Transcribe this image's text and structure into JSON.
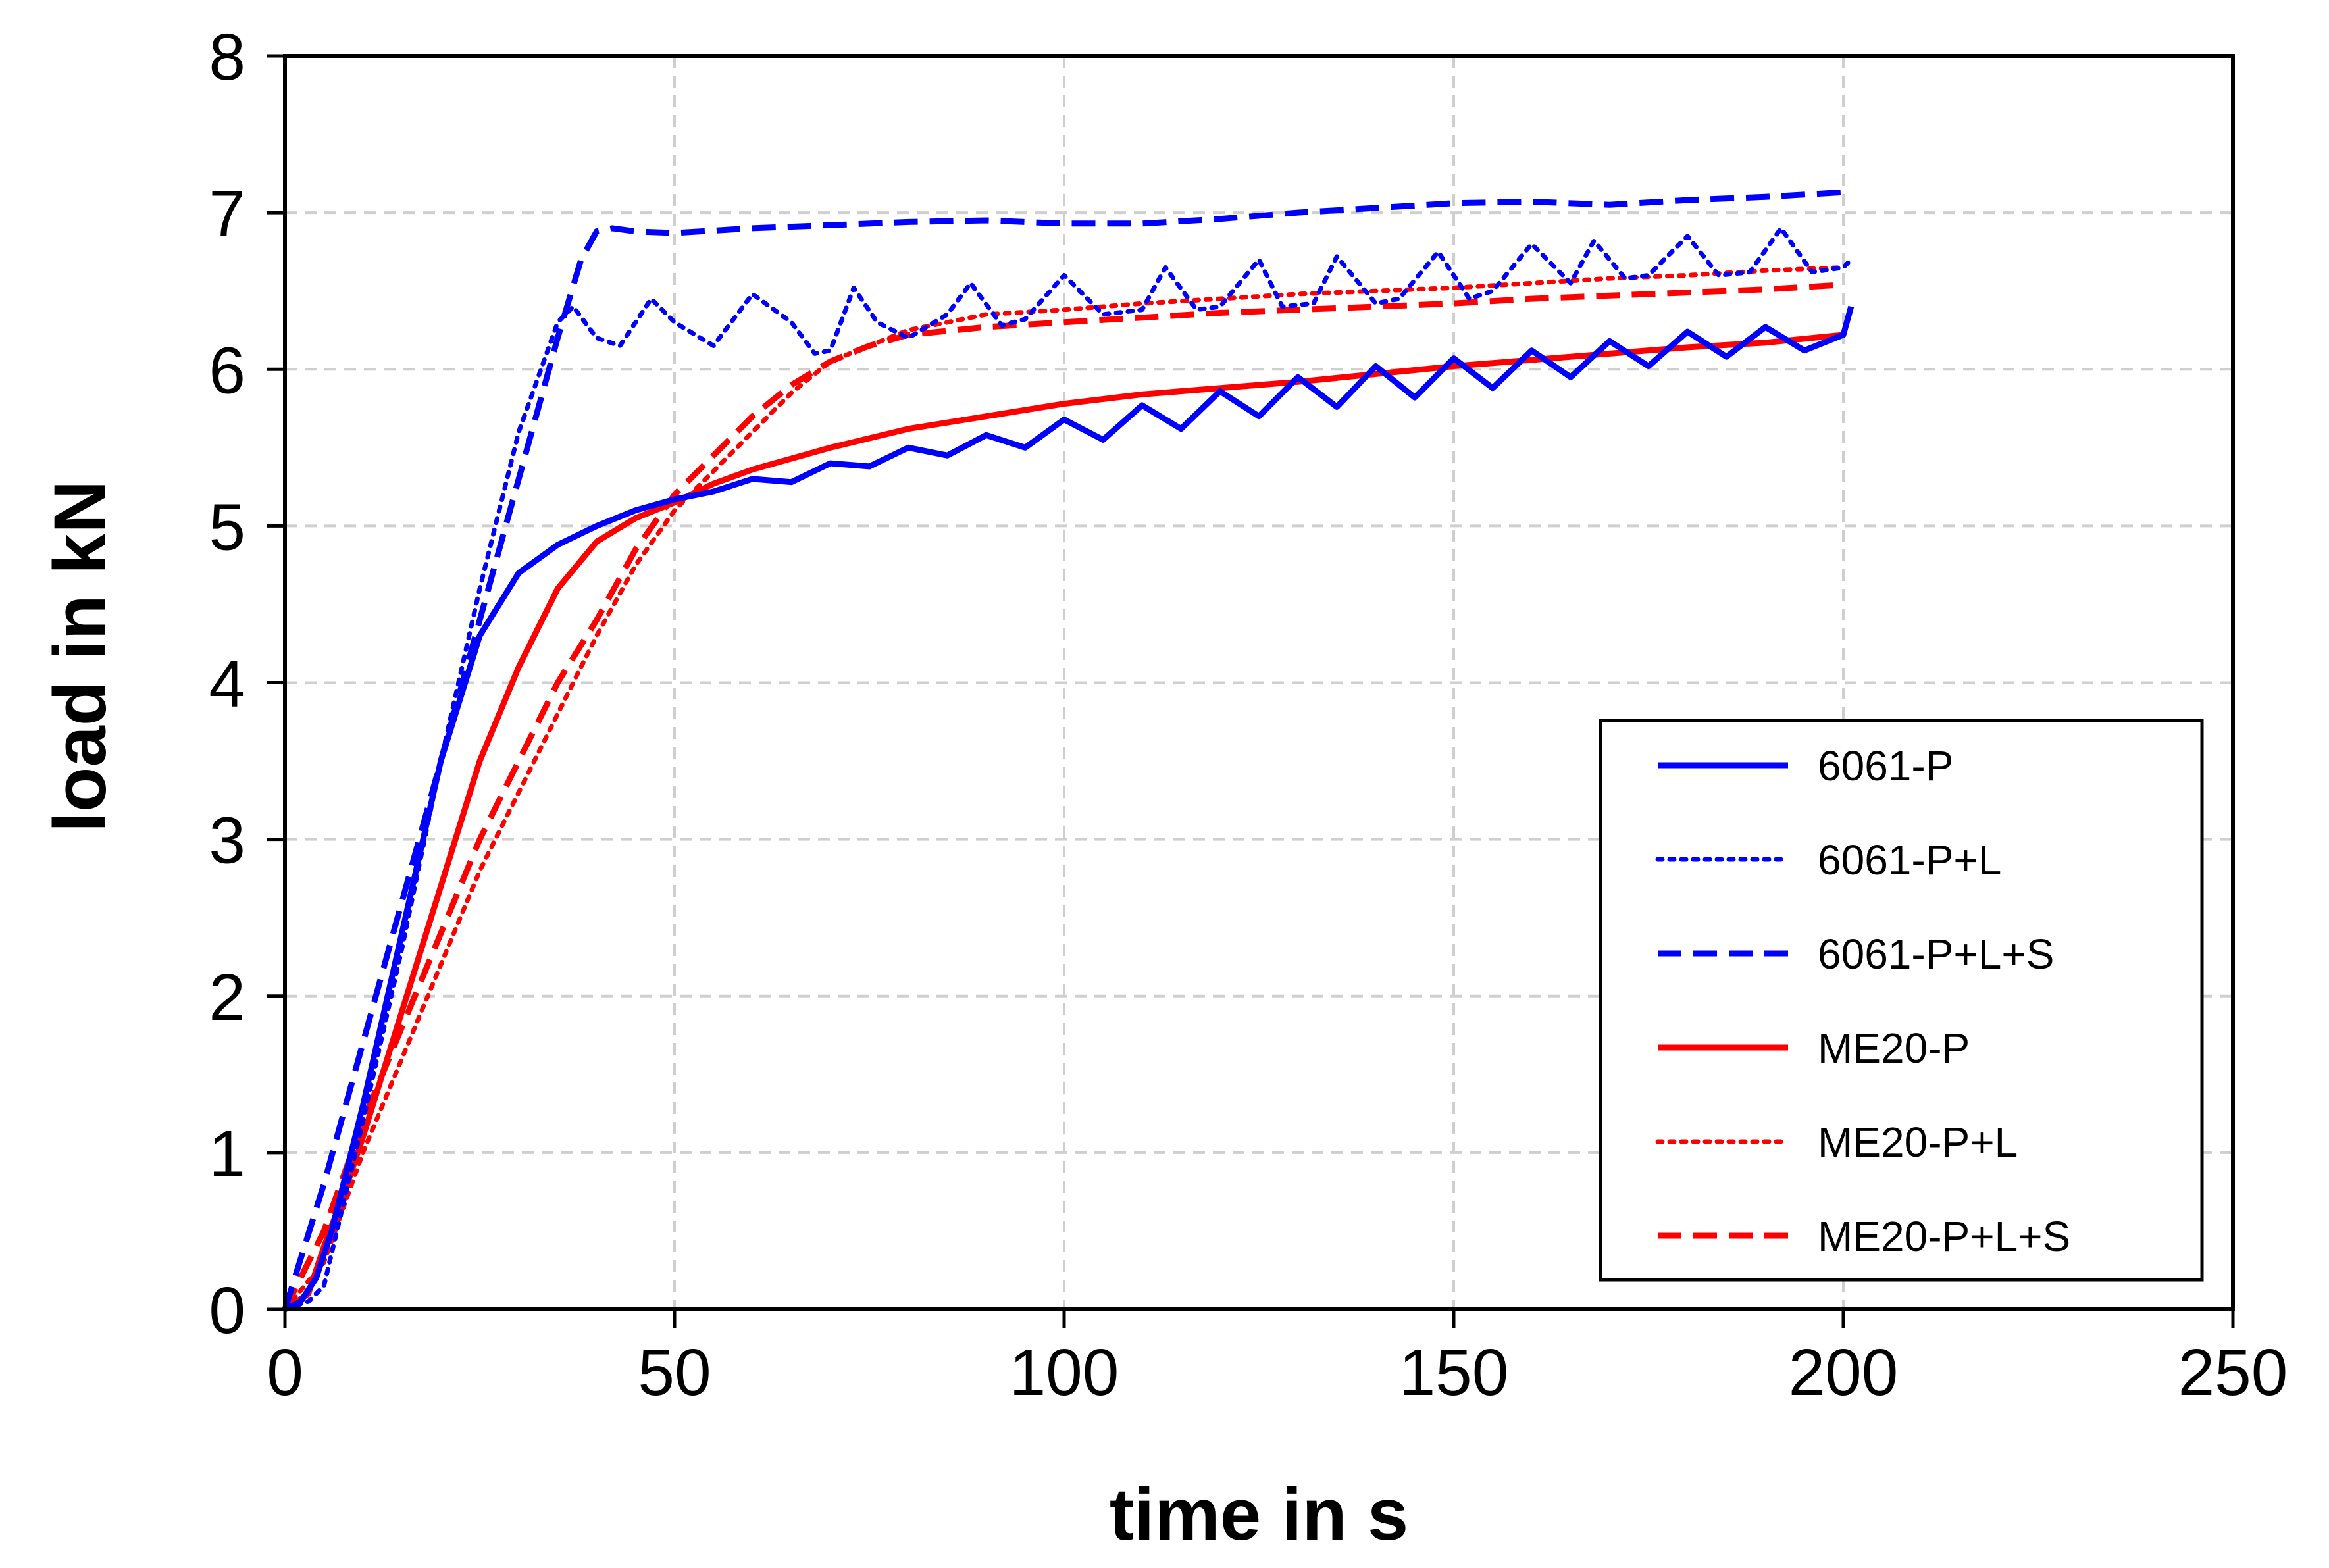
{
  "chart_data": {
    "type": "line",
    "title": "",
    "xlabel": "time in s",
    "ylabel": "load in kN",
    "xlim": [
      0,
      250
    ],
    "ylim": [
      0,
      8
    ],
    "xticks": [
      0,
      50,
      100,
      150,
      200,
      250
    ],
    "yticks": [
      0,
      1,
      2,
      3,
      4,
      5,
      6,
      7,
      8
    ],
    "xtick_labels": [
      "0",
      "50",
      "100",
      "150",
      "200",
      "250"
    ],
    "ytick_labels": [
      "0",
      "1",
      "2",
      "3",
      "4",
      "5",
      "6",
      "7",
      "8"
    ],
    "grid": true,
    "legend_position": "lower-right",
    "series": [
      {
        "name": "6061-P",
        "color": "#0000ff",
        "style": "solid",
        "x": [
          0,
          2,
          4,
          6,
          10,
          15,
          20,
          25,
          30,
          35,
          40,
          45,
          50,
          55,
          60,
          65,
          70,
          75,
          80,
          85,
          90,
          95,
          100,
          105,
          110,
          115,
          120,
          125,
          130,
          135,
          140,
          145,
          150,
          155,
          160,
          165,
          170,
          175,
          180,
          185,
          190,
          195,
          200,
          201
        ],
        "y": [
          0,
          0.05,
          0.2,
          0.5,
          1.3,
          2.4,
          3.5,
          4.3,
          4.7,
          4.88,
          5.0,
          5.1,
          5.17,
          5.22,
          5.3,
          5.28,
          5.4,
          5.38,
          5.5,
          5.45,
          5.58,
          5.5,
          5.68,
          5.55,
          5.77,
          5.62,
          5.86,
          5.7,
          5.95,
          5.76,
          6.02,
          5.82,
          6.07,
          5.88,
          6.12,
          5.95,
          6.18,
          6.02,
          6.24,
          6.08,
          6.27,
          6.12,
          6.22,
          6.4
        ]
      },
      {
        "name": "6061-P+L",
        "color": "#0000ff",
        "style": "dotted",
        "x": [
          0,
          3,
          5,
          10,
          15,
          20,
          25,
          30,
          35,
          37,
          40,
          43,
          47,
          50,
          55,
          60,
          65,
          68,
          70,
          73,
          76,
          80,
          85,
          88,
          92,
          95,
          100,
          105,
          110,
          113,
          117,
          120,
          125,
          128,
          132,
          135,
          140,
          143,
          148,
          152,
          155,
          160,
          165,
          168,
          172,
          175,
          180,
          184,
          188,
          192,
          196,
          200,
          201
        ],
        "y": [
          0,
          0.05,
          0.15,
          1.2,
          2.3,
          3.5,
          4.6,
          5.6,
          6.3,
          6.4,
          6.2,
          6.15,
          6.45,
          6.3,
          6.15,
          6.48,
          6.3,
          6.1,
          6.12,
          6.52,
          6.3,
          6.2,
          6.35,
          6.55,
          6.28,
          6.32,
          6.6,
          6.35,
          6.38,
          6.65,
          6.38,
          6.4,
          6.7,
          6.4,
          6.42,
          6.72,
          6.42,
          6.45,
          6.75,
          6.45,
          6.5,
          6.8,
          6.55,
          6.82,
          6.58,
          6.6,
          6.85,
          6.6,
          6.62,
          6.9,
          6.62,
          6.65,
          6.7
        ]
      },
      {
        "name": "6061-P+L+S",
        "color": "#0000ff",
        "style": "dashed",
        "x": [
          0,
          5,
          10,
          15,
          20,
          25,
          30,
          35,
          38,
          40,
          42,
          45,
          50,
          60,
          70,
          80,
          90,
          100,
          110,
          120,
          130,
          140,
          150,
          160,
          170,
          180,
          190,
          200
        ],
        "y": [
          0,
          0.8,
          1.7,
          2.6,
          3.5,
          4.4,
          5.3,
          6.2,
          6.7,
          6.88,
          6.9,
          6.88,
          6.87,
          6.9,
          6.92,
          6.94,
          6.95,
          6.93,
          6.93,
          6.96,
          7.0,
          7.03,
          7.06,
          7.07,
          7.05,
          7.08,
          7.1,
          7.13
        ]
      },
      {
        "name": "ME20-P",
        "color": "#ff0000",
        "style": "solid",
        "x": [
          0,
          3,
          5,
          8,
          10,
          15,
          20,
          25,
          30,
          35,
          40,
          45,
          50,
          55,
          60,
          70,
          80,
          90,
          100,
          110,
          120,
          130,
          140,
          150,
          160,
          170,
          180,
          190,
          200
        ],
        "y": [
          0,
          0.1,
          0.4,
          0.8,
          1.1,
          1.9,
          2.7,
          3.5,
          4.1,
          4.6,
          4.9,
          5.05,
          5.15,
          5.27,
          5.36,
          5.5,
          5.62,
          5.7,
          5.78,
          5.84,
          5.88,
          5.92,
          5.97,
          6.02,
          6.06,
          6.1,
          6.14,
          6.17,
          6.22
        ]
      },
      {
        "name": "ME20-P+L",
        "color": "#ff0000",
        "style": "dotted",
        "x": [
          0,
          5,
          10,
          15,
          20,
          25,
          30,
          35,
          40,
          45,
          50,
          55,
          60,
          65,
          70,
          75,
          80,
          85,
          90,
          100,
          110,
          120,
          130,
          140,
          150,
          160,
          170,
          180,
          190,
          200
        ],
        "y": [
          0,
          0.3,
          1.0,
          1.6,
          2.2,
          2.8,
          3.3,
          3.8,
          4.3,
          4.75,
          5.1,
          5.35,
          5.6,
          5.85,
          6.05,
          6.15,
          6.25,
          6.3,
          6.35,
          6.38,
          6.42,
          6.45,
          6.48,
          6.5,
          6.52,
          6.55,
          6.58,
          6.6,
          6.63,
          6.65
        ]
      },
      {
        "name": "ME20-P+L+S",
        "color": "#ff0000",
        "style": "dashed",
        "x": [
          0,
          5,
          10,
          15,
          20,
          25,
          30,
          35,
          40,
          45,
          50,
          55,
          60,
          65,
          70,
          75,
          80,
          90,
          100,
          110,
          120,
          130,
          140,
          150,
          160,
          170,
          180,
          190,
          200
        ],
        "y": [
          0,
          0.5,
          1.2,
          1.8,
          2.4,
          3.0,
          3.5,
          4.0,
          4.4,
          4.85,
          5.2,
          5.45,
          5.7,
          5.9,
          6.05,
          6.15,
          6.22,
          6.27,
          6.3,
          6.33,
          6.36,
          6.38,
          6.4,
          6.42,
          6.45,
          6.47,
          6.49,
          6.51,
          6.54
        ]
      }
    ]
  }
}
